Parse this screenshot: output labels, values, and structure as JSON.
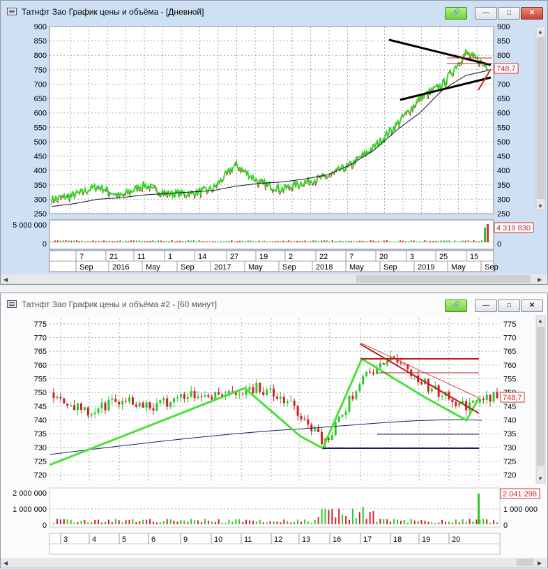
{
  "window1": {
    "title": "Татнфт Зао График цены и объёма - [Дневной]",
    "price_axis": [
      "900",
      "850",
      "800",
      "750",
      "700",
      "650",
      "600",
      "550",
      "500",
      "450",
      "400",
      "350",
      "300",
      "250"
    ],
    "current_price": "748,7",
    "volume_axis_left": [
      "5 000 000",
      "0"
    ],
    "volume_axis_right": [
      "0"
    ],
    "volume_value": "4 319 830",
    "date_ticks": [
      "7",
      "21",
      "11",
      "1",
      "14",
      "27",
      "19",
      "2",
      "22",
      "7",
      "20",
      "3",
      "25",
      "15"
    ],
    "date_labels": [
      "Sep",
      "2016",
      "May",
      "Sep",
      "2017",
      "May",
      "Sep",
      "2018",
      "May",
      "Sep",
      "2019",
      "May",
      "Sep"
    ],
    "buttons": {
      "link": "🔗",
      "minimize": "—",
      "maximize": "□",
      "close": "✕"
    }
  },
  "window2": {
    "title": "Татнфт Зао График цены и объёма #2 - [60 минут]",
    "price_axis": [
      "775",
      "770",
      "765",
      "760",
      "755",
      "750",
      "745",
      "740",
      "735",
      "730",
      "725",
      "720"
    ],
    "current_price": "748,7",
    "volume_axis_left": [
      "2 000 000",
      "1 000 000",
      "0"
    ],
    "volume_axis_right": [
      "1 000 000",
      "0"
    ],
    "volume_value": "2 041 298",
    "date_ticks": [
      "3",
      "4",
      "5",
      "6",
      "9",
      "10",
      "11",
      "12",
      "13",
      "16",
      "17",
      "18",
      "19",
      "20"
    ],
    "buttons": {
      "link": "🔗",
      "minimize": "—",
      "maximize": "□",
      "close": "✕"
    }
  },
  "chart_data": [
    {
      "type": "line",
      "title": "Татнфт Зао График цены и объёма - [Дневной]",
      "ylim": [
        250,
        900
      ],
      "x": [
        "2016-09",
        "2016-11",
        "2017-01",
        "2017-03",
        "2017-05",
        "2017-07",
        "2017-09",
        "2017-11",
        "2018-01",
        "2018-03",
        "2018-05",
        "2018-07",
        "2018-09",
        "2018-10",
        "2018-12",
        "2019-02",
        "2019-04",
        "2019-06",
        "2019-08",
        "2019-09"
      ],
      "series": [
        {
          "values": [
            300,
            315,
            345,
            310,
            350,
            320,
            320,
            335,
            420,
            360,
            335,
            360,
            380,
            420,
            480,
            560,
            650,
            700,
            810,
            760
          ]
        },
        {
          "values": [
            275,
            285,
            300,
            305,
            315,
            320,
            325,
            330,
            345,
            355,
            360,
            370,
            385,
            420,
            470,
            540,
            600,
            680,
            730,
            748
          ]
        }
      ]
    },
    {
      "type": "line",
      "title": "Татнфт Зао График цены и объёма #2 - [60 минут]",
      "ylim": [
        720,
        777
      ],
      "x": [
        "3",
        "4",
        "5",
        "6",
        "9",
        "10",
        "11",
        "12",
        "13",
        "16",
        "17",
        "18",
        "19",
        "20"
      ],
      "series": [
        {
          "values": [
            750,
            742,
            748,
            745,
            750,
            749,
            752,
            745,
            731,
            755,
            763,
            752,
            745,
            748.7
          ]
        }
      ]
    }
  ]
}
